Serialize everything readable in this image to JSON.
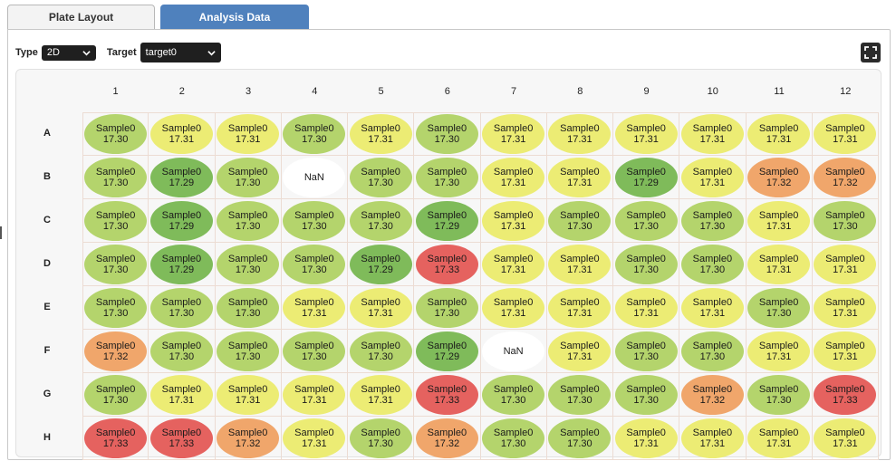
{
  "tabs": [
    {
      "label": "Plate Layout",
      "active": false
    },
    {
      "label": "Analysis Data",
      "active": true
    }
  ],
  "controls": {
    "type_label": "Type",
    "type_value": "2D",
    "target_label": "Target",
    "target_value": "target0"
  },
  "icons": {
    "expand": "fullscreen-icon",
    "dropdown": "chevron-down-icon"
  },
  "colors": {
    "tab_active": "#4f81bd",
    "17.29": "#7fbb5a",
    "17.30": "#b4d46c",
    "17.31": "#ecec74",
    "17.32": "#f0a66b",
    "17.33": "#e5625f",
    "NaN": "#ffffff"
  },
  "plate": {
    "columns": [
      "1",
      "2",
      "3",
      "4",
      "5",
      "6",
      "7",
      "8",
      "9",
      "10",
      "11",
      "12"
    ],
    "rows": [
      "A",
      "B",
      "C",
      "D",
      "E",
      "F",
      "G",
      "H"
    ],
    "wells": [
      [
        {
          "name": "Sample0",
          "value": "17.30"
        },
        {
          "name": "Sample0",
          "value": "17.31"
        },
        {
          "name": "Sample0",
          "value": "17.31"
        },
        {
          "name": "Sample0",
          "value": "17.30"
        },
        {
          "name": "Sample0",
          "value": "17.31"
        },
        {
          "name": "Sample0",
          "value": "17.30"
        },
        {
          "name": "Sample0",
          "value": "17.31"
        },
        {
          "name": "Sample0",
          "value": "17.31"
        },
        {
          "name": "Sample0",
          "value": "17.31"
        },
        {
          "name": "Sample0",
          "value": "17.31"
        },
        {
          "name": "Sample0",
          "value": "17.31"
        },
        {
          "name": "Sample0",
          "value": "17.31"
        }
      ],
      [
        {
          "name": "Sample0",
          "value": "17.30"
        },
        {
          "name": "Sample0",
          "value": "17.29"
        },
        {
          "name": "Sample0",
          "value": "17.30"
        },
        {
          "name": "",
          "value": "NaN"
        },
        {
          "name": "Sample0",
          "value": "17.30"
        },
        {
          "name": "Sample0",
          "value": "17.30"
        },
        {
          "name": "Sample0",
          "value": "17.31"
        },
        {
          "name": "Sample0",
          "value": "17.31"
        },
        {
          "name": "Sample0",
          "value": "17.29"
        },
        {
          "name": "Sample0",
          "value": "17.31"
        },
        {
          "name": "Sample0",
          "value": "17.32"
        },
        {
          "name": "Sample0",
          "value": "17.32"
        }
      ],
      [
        {
          "name": "Sample0",
          "value": "17.30"
        },
        {
          "name": "Sample0",
          "value": "17.29"
        },
        {
          "name": "Sample0",
          "value": "17.30"
        },
        {
          "name": "Sample0",
          "value": "17.30"
        },
        {
          "name": "Sample0",
          "value": "17.30"
        },
        {
          "name": "Sample0",
          "value": "17.29"
        },
        {
          "name": "Sample0",
          "value": "17.31"
        },
        {
          "name": "Sample0",
          "value": "17.30"
        },
        {
          "name": "Sample0",
          "value": "17.30"
        },
        {
          "name": "Sample0",
          "value": "17.30"
        },
        {
          "name": "Sample0",
          "value": "17.31"
        },
        {
          "name": "Sample0",
          "value": "17.30"
        }
      ],
      [
        {
          "name": "Sample0",
          "value": "17.30"
        },
        {
          "name": "Sample0",
          "value": "17.29"
        },
        {
          "name": "Sample0",
          "value": "17.30"
        },
        {
          "name": "Sample0",
          "value": "17.30"
        },
        {
          "name": "Sample0",
          "value": "17.29"
        },
        {
          "name": "Sample0",
          "value": "17.33"
        },
        {
          "name": "Sample0",
          "value": "17.31"
        },
        {
          "name": "Sample0",
          "value": "17.31"
        },
        {
          "name": "Sample0",
          "value": "17.30"
        },
        {
          "name": "Sample0",
          "value": "17.30"
        },
        {
          "name": "Sample0",
          "value": "17.31"
        },
        {
          "name": "Sample0",
          "value": "17.31"
        }
      ],
      [
        {
          "name": "Sample0",
          "value": "17.30"
        },
        {
          "name": "Sample0",
          "value": "17.30"
        },
        {
          "name": "Sample0",
          "value": "17.30"
        },
        {
          "name": "Sample0",
          "value": "17.31"
        },
        {
          "name": "Sample0",
          "value": "17.31"
        },
        {
          "name": "Sample0",
          "value": "17.30"
        },
        {
          "name": "Sample0",
          "value": "17.31"
        },
        {
          "name": "Sample0",
          "value": "17.31"
        },
        {
          "name": "Sample0",
          "value": "17.31"
        },
        {
          "name": "Sample0",
          "value": "17.31"
        },
        {
          "name": "Sample0",
          "value": "17.30"
        },
        {
          "name": "Sample0",
          "value": "17.31"
        }
      ],
      [
        {
          "name": "Sample0",
          "value": "17.32"
        },
        {
          "name": "Sample0",
          "value": "17.30"
        },
        {
          "name": "Sample0",
          "value": "17.30"
        },
        {
          "name": "Sample0",
          "value": "17.30"
        },
        {
          "name": "Sample0",
          "value": "17.30"
        },
        {
          "name": "Sample0",
          "value": "17.29"
        },
        {
          "name": "",
          "value": "NaN"
        },
        {
          "name": "Sample0",
          "value": "17.31"
        },
        {
          "name": "Sample0",
          "value": "17.30"
        },
        {
          "name": "Sample0",
          "value": "17.30"
        },
        {
          "name": "Sample0",
          "value": "17.31"
        },
        {
          "name": "Sample0",
          "value": "17.31"
        }
      ],
      [
        {
          "name": "Sample0",
          "value": "17.30"
        },
        {
          "name": "Sample0",
          "value": "17.31"
        },
        {
          "name": "Sample0",
          "value": "17.31"
        },
        {
          "name": "Sample0",
          "value": "17.31"
        },
        {
          "name": "Sample0",
          "value": "17.31"
        },
        {
          "name": "Sample0",
          "value": "17.33"
        },
        {
          "name": "Sample0",
          "value": "17.30"
        },
        {
          "name": "Sample0",
          "value": "17.30"
        },
        {
          "name": "Sample0",
          "value": "17.30"
        },
        {
          "name": "Sample0",
          "value": "17.32"
        },
        {
          "name": "Sample0",
          "value": "17.30"
        },
        {
          "name": "Sample0",
          "value": "17.33"
        }
      ],
      [
        {
          "name": "Sample0",
          "value": "17.33"
        },
        {
          "name": "Sample0",
          "value": "17.33"
        },
        {
          "name": "Sample0",
          "value": "17.32"
        },
        {
          "name": "Sample0",
          "value": "17.31"
        },
        {
          "name": "Sample0",
          "value": "17.30"
        },
        {
          "name": "Sample0",
          "value": "17.32"
        },
        {
          "name": "Sample0",
          "value": "17.30"
        },
        {
          "name": "Sample0",
          "value": "17.30"
        },
        {
          "name": "Sample0",
          "value": "17.31"
        },
        {
          "name": "Sample0",
          "value": "17.31"
        },
        {
          "name": "Sample0",
          "value": "17.31"
        },
        {
          "name": "Sample0",
          "value": "17.31"
        }
      ]
    ]
  }
}
